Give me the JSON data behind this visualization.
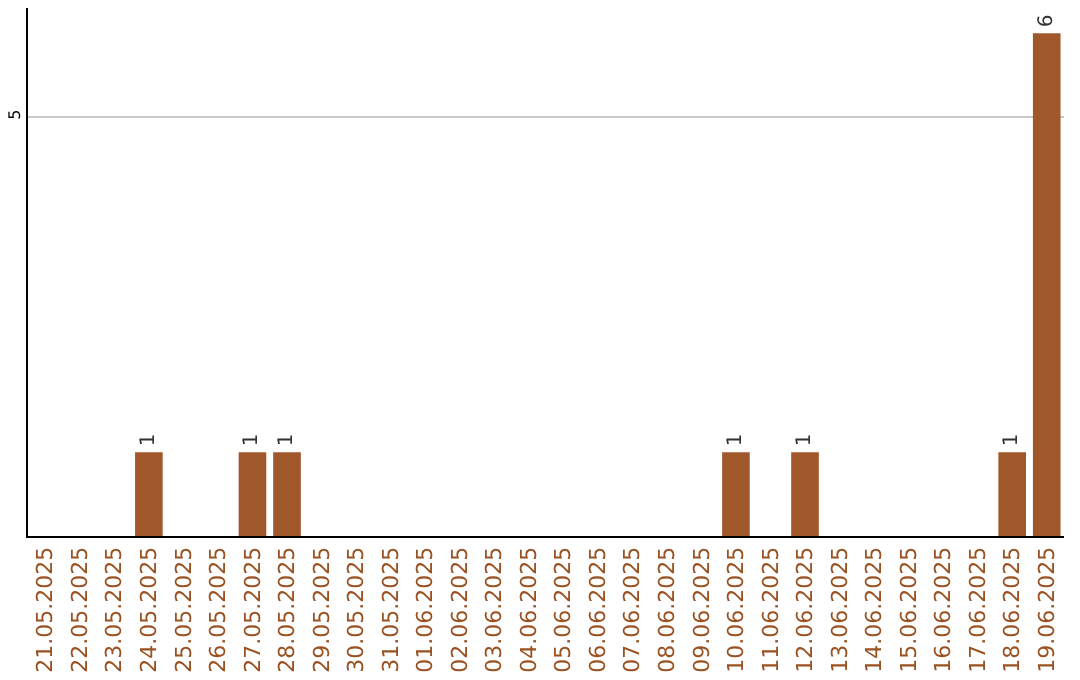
{
  "chart_data": {
    "type": "bar",
    "categories": [
      "21.05.2025",
      "22.05.2025",
      "23.05.2025",
      "24.05.2025",
      "25.05.2025",
      "26.05.2025",
      "27.05.2025",
      "28.05.2025",
      "29.05.2025",
      "30.05.2025",
      "31.05.2025",
      "01.06.2025",
      "02.06.2025",
      "03.06.2025",
      "04.06.2025",
      "05.06.2025",
      "06.06.2025",
      "07.06.2025",
      "08.06.2025",
      "09.06.2025",
      "10.06.2025",
      "11.06.2025",
      "12.06.2025",
      "13.06.2025",
      "14.06.2025",
      "15.06.2025",
      "16.06.2025",
      "17.06.2025",
      "18.06.2025",
      "19.06.2025"
    ],
    "values": [
      0,
      0,
      0,
      1,
      0,
      0,
      1,
      1,
      0,
      0,
      0,
      0,
      0,
      0,
      0,
      0,
      0,
      0,
      0,
      0,
      1,
      0,
      1,
      0,
      0,
      0,
      0,
      0,
      1,
      6
    ],
    "value_labels": [
      null,
      null,
      null,
      "1",
      null,
      null,
      "1",
      "1",
      null,
      null,
      null,
      null,
      null,
      null,
      null,
      null,
      null,
      null,
      null,
      null,
      "1",
      null,
      "1",
      null,
      null,
      null,
      null,
      null,
      "1",
      "6"
    ],
    "color": "#a0572a",
    "ylim": [
      0,
      6.3
    ],
    "yticks": [
      5
    ],
    "grid": "y"
  }
}
